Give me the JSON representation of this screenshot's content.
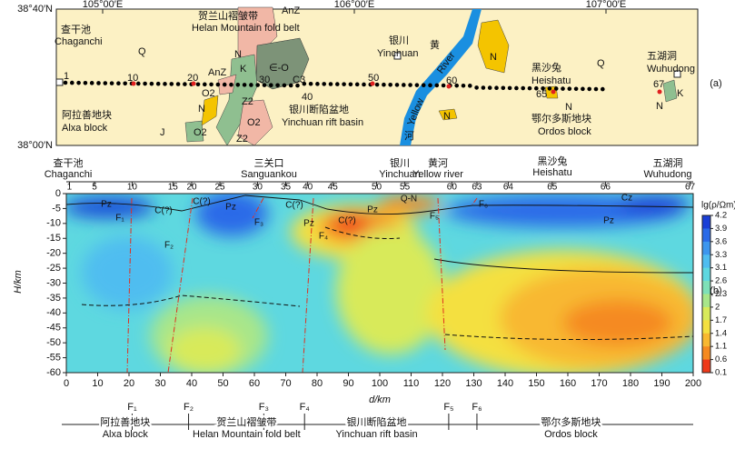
{
  "map": {
    "label": "(a)",
    "lon_ticks": [
      {
        "value": 105,
        "label": "105°00′E"
      },
      {
        "value": 106,
        "label": "106°00′E"
      },
      {
        "value": 107,
        "label": "107°00′E"
      }
    ],
    "lat_ticks": [
      {
        "value": 38.6667,
        "label": "38°40′N"
      },
      {
        "value": 38,
        "label": "38°00′N"
      }
    ],
    "labels": [
      "查干池",
      "Chaganchi",
      "Q",
      "贺兰山褶皱带",
      "Helan Mountain fold belt",
      "AnZ",
      "N",
      "K",
      "∈-O",
      "AnZ",
      "O2",
      "Z2",
      "30",
      "C3",
      "40",
      "N",
      "O2",
      "Z2",
      "O2",
      "J",
      "阿拉善地块",
      "Alxa block",
      "银川断陷盆地",
      "Yinchuan rift basin",
      "银川",
      "Yinchuan",
      "黄",
      "Yellow",
      "River",
      "河",
      "N",
      "N",
      "黑沙兔",
      "Heishatu",
      "65",
      "N",
      "Q",
      "鄂尔多斯地块",
      "Ordos block",
      "五湖洞",
      "Wuhudong",
      "67",
      "N",
      "K",
      "1",
      "10",
      "20",
      "50",
      "60"
    ]
  },
  "section": {
    "label": "(b)",
    "xlabel": "d/km",
    "ylabel": "H/km",
    "xlim": [
      0,
      200
    ],
    "ylim": [
      -60,
      0
    ],
    "xticks": [
      0,
      10,
      20,
      30,
      40,
      50,
      60,
      70,
      80,
      90,
      100,
      110,
      120,
      130,
      140,
      150,
      160,
      170,
      180,
      190,
      200
    ],
    "yticks": [
      0,
      -5,
      -10,
      -15,
      -20,
      -25,
      -30,
      -35,
      -40,
      -45,
      -50,
      -55,
      -60
    ],
    "places": [
      "查干池",
      "Chaganchi",
      "三关口",
      "Sanguankou",
      "银川",
      "Yinchuan",
      "黄河",
      "Yellow river",
      "黑沙兔",
      "Heishatu",
      "五湖洞",
      "Wuhudong"
    ],
    "stations": [
      {
        "label": "1",
        "d": 1
      },
      {
        "label": "5",
        "d": 9
      },
      {
        "label": "10",
        "d": 21
      },
      {
        "label": "15",
        "d": 34
      },
      {
        "label": "20",
        "d": 40
      },
      {
        "label": "25",
        "d": 49
      },
      {
        "label": "30",
        "d": 61
      },
      {
        "label": "35",
        "d": 70
      },
      {
        "label": "40",
        "d": 77
      },
      {
        "label": "45",
        "d": 85
      },
      {
        "label": "50",
        "d": 99
      },
      {
        "label": "55",
        "d": 108
      },
      {
        "label": "60",
        "d": 123
      },
      {
        "label": "63",
        "d": 131
      },
      {
        "label": "64",
        "d": 141
      },
      {
        "label": "65",
        "d": 155
      },
      {
        "label": "66",
        "d": 172
      },
      {
        "label": "67",
        "d": 199
      }
    ],
    "units": [
      "Pz",
      "F₁",
      "C(?)",
      "C(?)",
      "Pz",
      "F₃",
      "C(?)",
      "Pz",
      "C(?)",
      "Pz",
      "Q-N",
      "F₅",
      "F₆",
      "Cz",
      "Pz",
      "F₂",
      "F₄"
    ],
    "colorbar": {
      "title": "lg(ρ/Ωm)",
      "ticks": [
        4.2,
        3.9,
        3.6,
        3.3,
        3.1,
        2.6,
        2.3,
        2.0,
        1.7,
        1.4,
        1.1,
        0.6,
        0.1
      ],
      "colors": [
        "#1a3fd6",
        "#2a6ae8",
        "#3d96ee",
        "#4fbdf0",
        "#5ed8e0",
        "#7ee0b8",
        "#a8e68a",
        "#d8ea5a",
        "#f4e040",
        "#f8b830",
        "#f58a20",
        "#ee3a1a"
      ]
    },
    "faults": [
      {
        "label": "F₁",
        "d": 21
      },
      {
        "label": "F₂",
        "d": 39
      },
      {
        "label": "F₃",
        "d": 63
      },
      {
        "label": "F₄",
        "d": 76
      },
      {
        "label": "F₅",
        "d": 122
      },
      {
        "label": "F₆",
        "d": 131
      }
    ],
    "blocks": [
      "阿拉善地块",
      "Alxa block",
      "贺兰山褶皱带",
      "Helan Mountain fold belt",
      "银川断陷盆地",
      "Yinchuan rift basin",
      "鄂尔多斯地块",
      "Ordos block"
    ]
  }
}
